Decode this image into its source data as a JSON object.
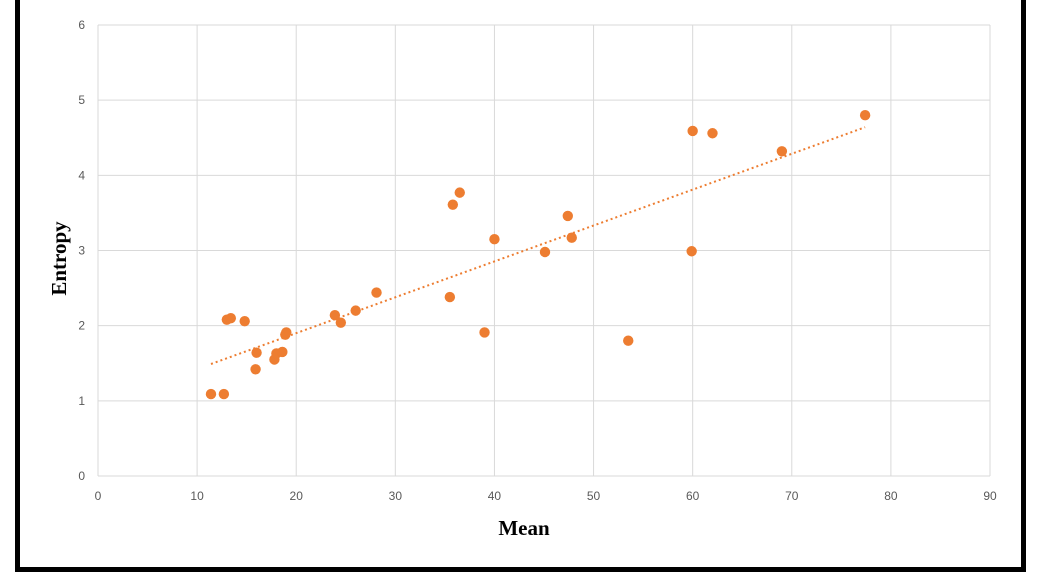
{
  "chart_data": {
    "type": "scatter",
    "title": "",
    "xlabel": "Mean",
    "ylabel": "Entropy",
    "xlim": [
      0,
      90
    ],
    "ylim": [
      0,
      6
    ],
    "xticks": [
      0,
      10,
      20,
      30,
      40,
      50,
      60,
      70,
      80,
      90
    ],
    "yticks": [
      0,
      1,
      2,
      3,
      4,
      5,
      6
    ],
    "grid": true,
    "legend": "none",
    "colors": {
      "marker": "#ED7D31",
      "trendline": "#ED7D31",
      "grid": "#D9D9D9"
    },
    "trendline": {
      "type": "linear",
      "style": "dotted",
      "x": [
        11.4,
        77.4
      ],
      "y": [
        1.49,
        4.64
      ]
    },
    "series": [
      {
        "x": [
          11.4,
          12.7,
          13.0,
          13.4,
          14.8,
          15.9,
          16.0,
          17.8,
          18.0,
          18.6,
          18.9,
          19.0,
          23.9,
          24.5,
          26.0,
          28.1,
          35.5,
          35.8,
          36.5,
          39.0,
          40.0,
          45.1,
          47.4,
          47.8,
          53.5,
          59.9,
          60.0,
          62.0,
          69.0,
          77.4
        ],
        "y": [
          1.09,
          1.09,
          2.08,
          2.1,
          2.06,
          1.42,
          1.64,
          1.55,
          1.63,
          1.65,
          1.88,
          1.91,
          2.14,
          2.04,
          2.2,
          2.44,
          2.38,
          3.61,
          3.77,
          1.91,
          3.15,
          2.98,
          3.46,
          3.17,
          1.8,
          2.99,
          4.59,
          4.56,
          4.32,
          4.8
        ]
      }
    ]
  }
}
